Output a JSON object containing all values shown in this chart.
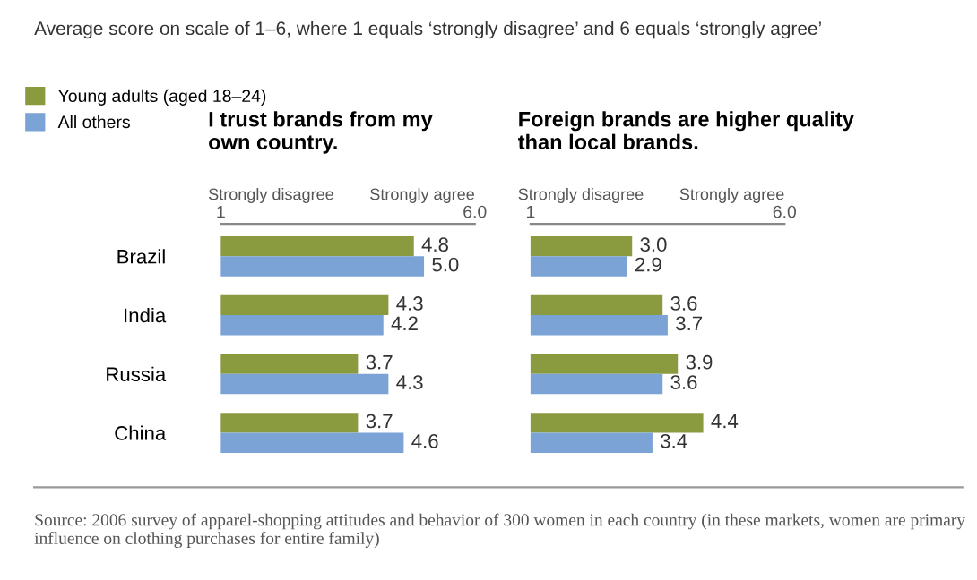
{
  "chart_data": [
    {
      "type": "bar",
      "orientation": "horizontal",
      "subtitle": "Average score on scale of 1–6, where 1 equals ‘strongly disagree’ and 6 equals ‘strongly agree’",
      "title": "I trust brands from my\nown country.",
      "categories": [
        "Brazil",
        "India",
        "Russia",
        "China"
      ],
      "series": [
        {
          "name": "Young adults (aged 18–24)",
          "color": "#8a9b3f",
          "values": [
            4.8,
            4.3,
            3.7,
            3.7
          ],
          "value_labels": [
            "4.8",
            "4.3",
            "3.7",
            "3.7"
          ]
        },
        {
          "name": "All others",
          "color": "#7ba3d5",
          "values": [
            5.0,
            4.2,
            4.3,
            4.6
          ],
          "value_labels": [
            "5.0",
            "4.2",
            "4.3",
            "4.6"
          ]
        }
      ],
      "xlim": [
        1,
        6
      ],
      "xticks": [
        1,
        {
          "value": 6,
          "label": "6.0"
        }
      ],
      "legend": "top left",
      "grid": false,
      "annotations": [
        "Strongly disagree",
        "Strongly agree",
        "Source: 2006 survey of apparel-shopping attitudes and behavior of 300 women in each country (in these markets, women are primary influence on clothing purchases for entire family)"
      ]
    },
    {
      "type": "bar",
      "orientation": "horizontal",
      "title": "Foreign brands are higher quality\nthan local brands.",
      "categories": [
        null,
        null,
        null,
        null
      ],
      "series": [
        {
          "color": "#8a9b3f",
          "values": [
            3.0,
            3.6,
            3.9,
            4.4
          ],
          "value_labels": [
            "3.0",
            "3.6",
            "3.9",
            "4.4"
          ]
        },
        {
          "color": "#7ba3d5",
          "values": [
            2.9,
            3.7,
            3.6,
            3.4
          ],
          "value_labels": [
            "2.9",
            "3.7",
            "3.6",
            "3.4"
          ]
        }
      ],
      "xlim": [
        1,
        6
      ],
      "xticks": [
        1,
        {
          "value": 6,
          "label": "6.0"
        }
      ],
      "grid": false,
      "annotations": [
        "Strongly disagree",
        "Strongly agree"
      ]
    }
  ]
}
